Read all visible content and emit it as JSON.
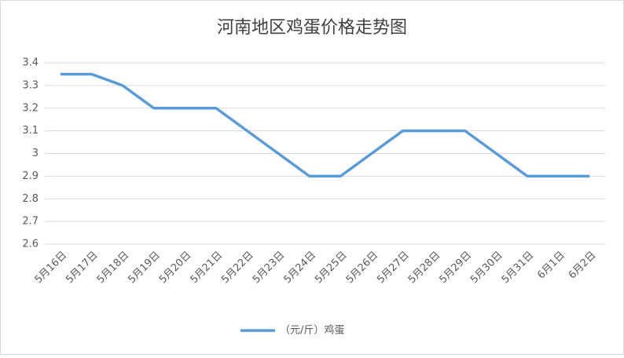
{
  "chart_data": {
    "type": "line",
    "title": "河南地区鸡蛋价格走势图",
    "categories": [
      "5月16日",
      "5月17日",
      "5月18日",
      "5月19日",
      "5月20日",
      "5月21日",
      "5月22日",
      "5月23日",
      "5月24日",
      "5月25日",
      "5月26日",
      "5月27日",
      "5月28日",
      "5月29日",
      "5月30日",
      "5月31日",
      "6月1日",
      "6月2日"
    ],
    "series": [
      {
        "name": "（元/斤）鸡蛋",
        "color": "#5b9bd5",
        "values": [
          3.35,
          3.35,
          3.3,
          3.2,
          3.2,
          3.2,
          3.1,
          3.0,
          2.9,
          2.9,
          3.0,
          3.1,
          3.1,
          3.1,
          3.0,
          2.9,
          2.9,
          2.9
        ]
      }
    ],
    "ylim": [
      2.6,
      3.4
    ],
    "yticks": [
      2.6,
      2.7,
      2.8,
      2.9,
      3,
      3.1,
      3.2,
      3.3,
      3.4
    ],
    "grid": true,
    "legend": "bottom"
  }
}
